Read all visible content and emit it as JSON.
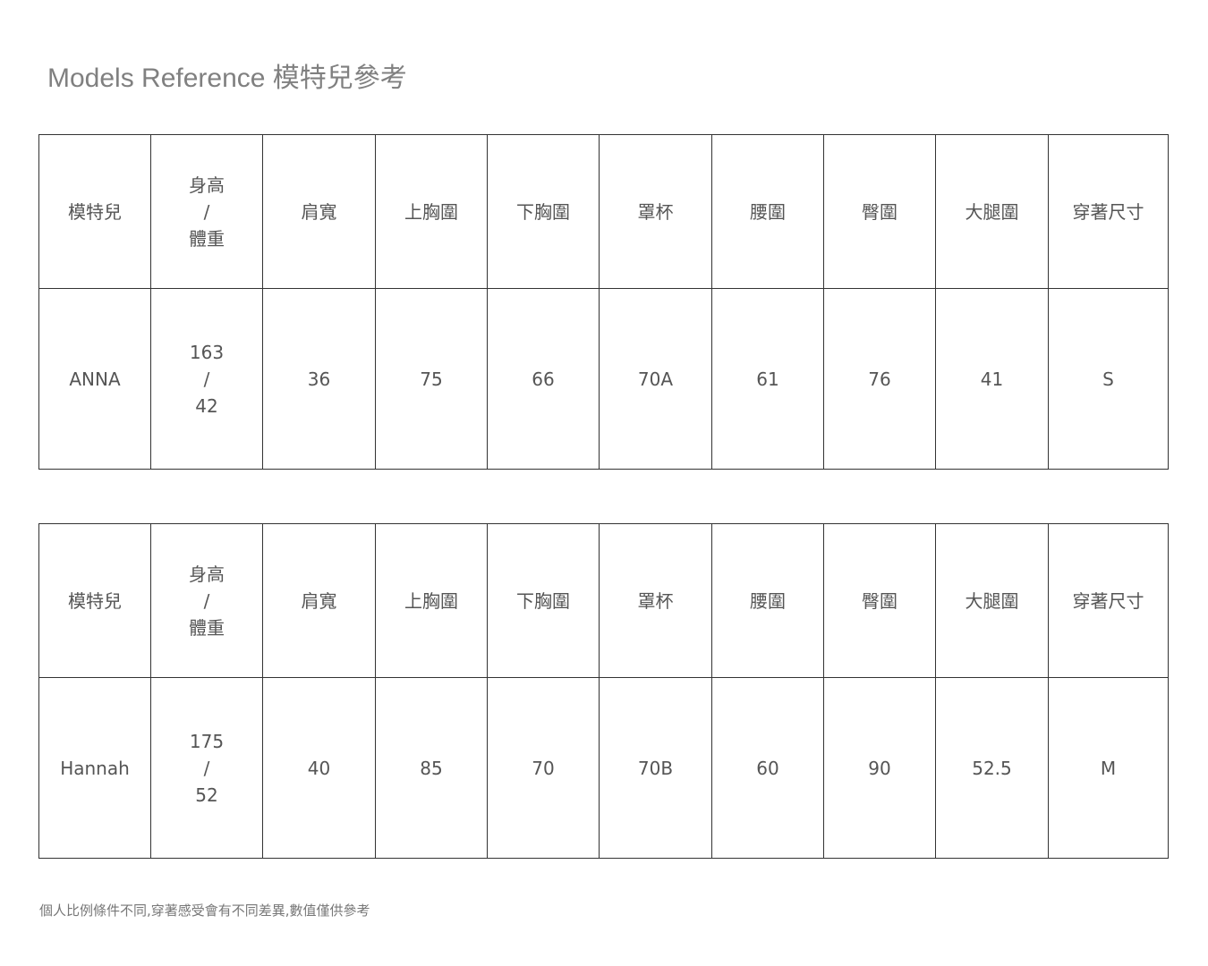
{
  "title": "Models Reference 模特兒參考",
  "headers": [
    "模特兒",
    "身高",
    "/",
    "體重",
    "肩寬",
    "上胸圍",
    "下胸圍",
    "罩杯",
    "腰圍",
    "臀圍",
    "大腿圍",
    "穿著尺寸"
  ],
  "models": [
    {
      "name": "ANNA",
      "height": "163",
      "sep": "/",
      "weight": "42",
      "shoulder": "36",
      "upper_bust": "75",
      "under_bust": "66",
      "cup": "70A",
      "waist": "61",
      "hip": "76",
      "thigh": "41",
      "size": "S"
    },
    {
      "name": "Hannah",
      "height": "175",
      "sep": "/",
      "weight": "52",
      "shoulder": "40",
      "upper_bust": "85",
      "under_bust": "70",
      "cup": "70B",
      "waist": "60",
      "hip": "90",
      "thigh": "52.5",
      "size": "M"
    }
  ],
  "note": "個人比例條件不同,穿著感受會有不同差異,數值僅供參考"
}
